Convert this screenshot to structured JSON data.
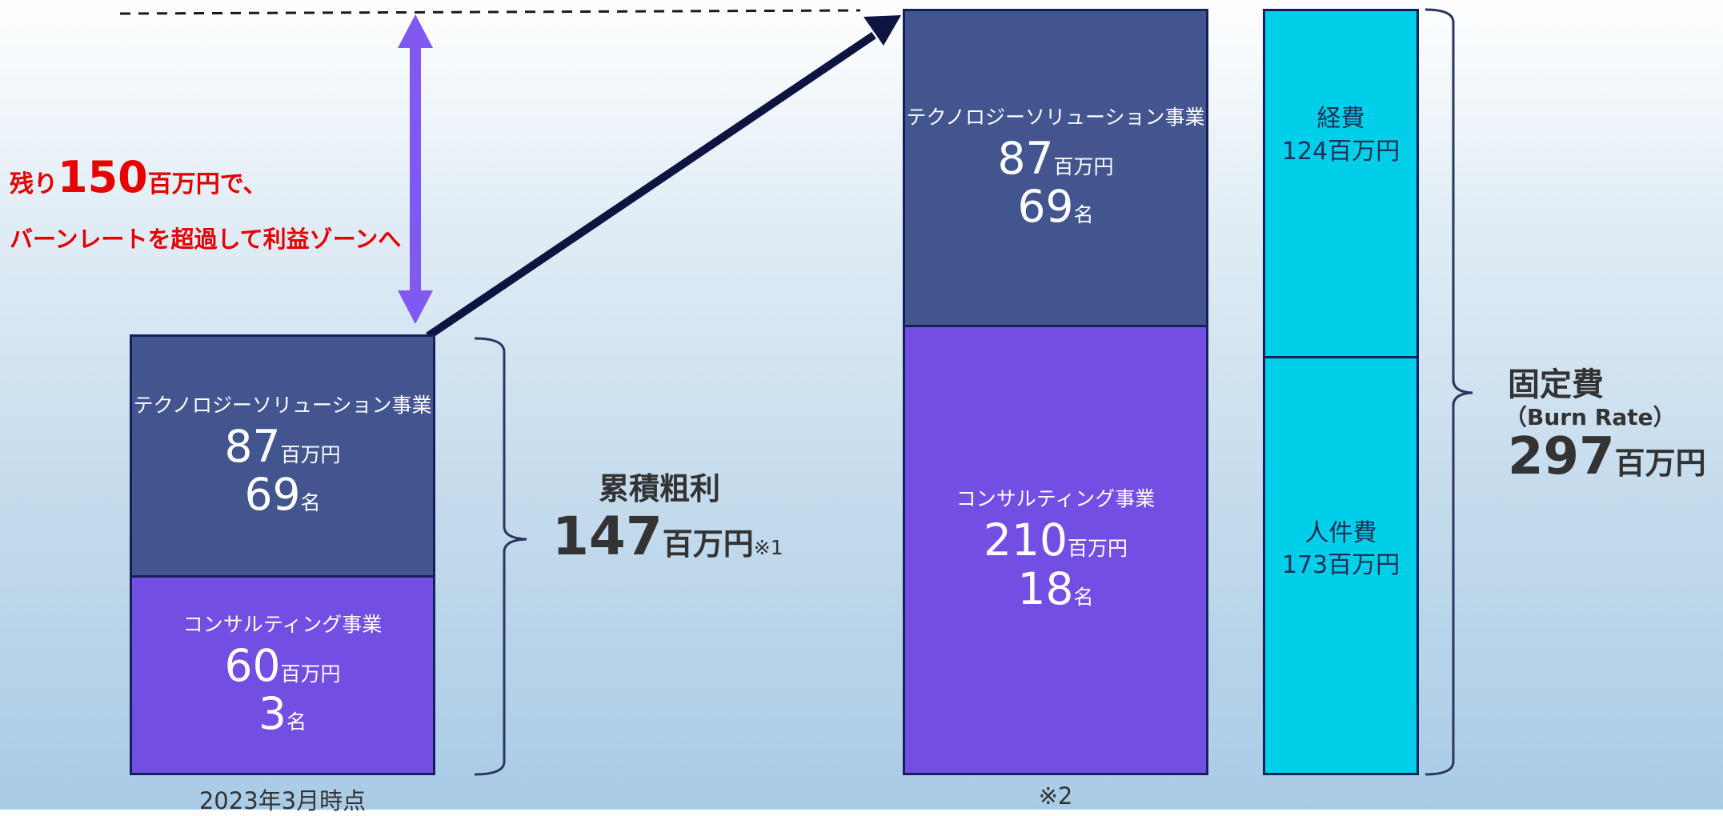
{
  "left_note": {
    "line1_prefix": "残り",
    "line1_value": "150",
    "line1_suffix": "百万円で、",
    "line2": "バーンレートを超過して利益ゾーンへ"
  },
  "left_stack": {
    "top": {
      "label": "テクノロジーソリューション事業",
      "amount": "87",
      "amount_unit": "百万円",
      "people": "69",
      "people_unit": "名"
    },
    "bottom": {
      "label": "コンサルティング事業",
      "amount": "60",
      "amount_unit": "百万円",
      "people": "3",
      "people_unit": "名"
    },
    "caption": "2023年3月時点"
  },
  "cumulative": {
    "title": "累積粗利",
    "value": "147",
    "unit": "百万円",
    "note": "※1"
  },
  "middle_stack": {
    "top": {
      "label": "テクノロジーソリューション事業",
      "amount": "87",
      "amount_unit": "百万円",
      "people": "69",
      "people_unit": "名"
    },
    "bottom": {
      "label": "コンサルティング事業",
      "amount": "210",
      "amount_unit": "百万円",
      "people": "18",
      "people_unit": "名"
    },
    "caption": "※2"
  },
  "cost_stack": {
    "top": {
      "label": "経費",
      "value": "124百万円"
    },
    "bottom": {
      "label": "人件費",
      "value": "173百万円"
    }
  },
  "fixed_cost": {
    "title": "固定費",
    "subtitle": "（Burn Rate）",
    "value": "297",
    "unit": "百万円"
  },
  "colors": {
    "navy": "#43558f",
    "purple": "#724ee2",
    "cyan": "#00cfea",
    "arrow_violet": "#8058f2",
    "arrow_navy": "#0d1440",
    "red": "#e60000"
  }
}
